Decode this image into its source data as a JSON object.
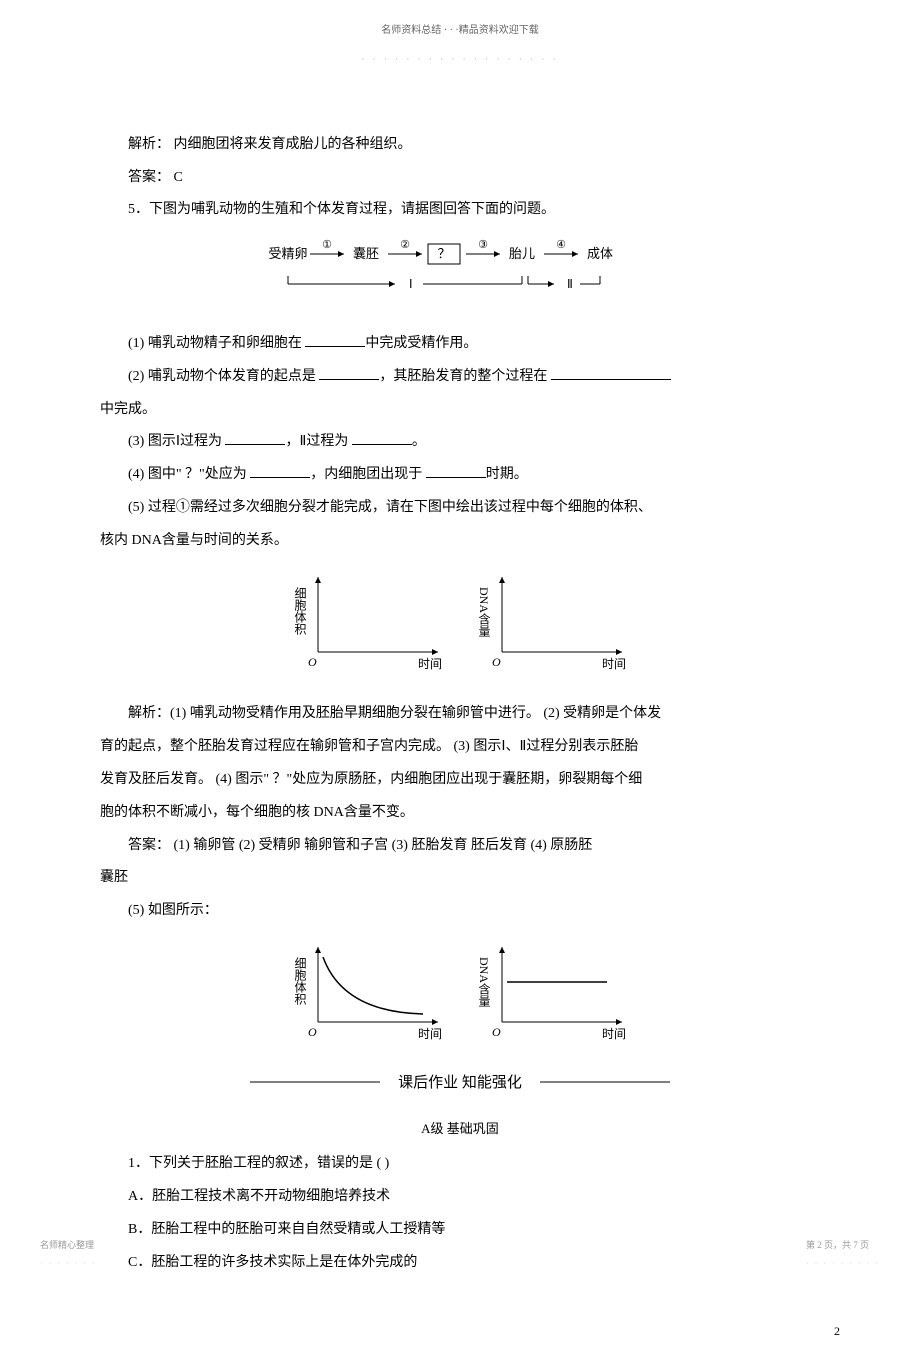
{
  "header": {
    "top": "名师资料总结 · · ·精品资料欢迎下载",
    "sub": "· · · · · · · · · · · · · · · · · ·"
  },
  "content": {
    "p1": "解析： 内细胞团将来发育成胎儿的各种组织。",
    "p2": "答案： C",
    "p3": "5．下图为哺乳动物的生殖和个体发育过程，请据图回答下面的问题。",
    "q1_pre": "(1) 哺乳动物精子和卵细胞在   ",
    "q1_post": "中完成受精作用。",
    "q2_pre": "(2) 哺乳动物个体发育的起点是    ",
    "q2_mid": "，其胚胎发育的整个过程在   ",
    "q2_end": "中完成。",
    "q3_pre": "(3) 图示Ⅰ过程为 ",
    "q3_mid": "，Ⅱ过程为 ",
    "q3_post": "。",
    "q4_pre": "(4) 图中\" ？\"处应为   ",
    "q4_mid": "，内细胞团出现于  ",
    "q4_post": "时期。",
    "q5": "(5) 过程①需经过多次细胞分裂才能完成，请在下图中绘出该过程中每个细胞的体积、",
    "q5_cont": "核内 DNA含量与时间的关系。",
    "analysis_pre": "解析：(1) 哺乳动物受精作用及胚胎早期细胞分裂在输卵管中进行。       (2) 受精卵是个体发",
    "analysis_l2": "育的起点，整个胚胎发育过程应在输卵管和子宫内完成。       (3) 图示Ⅰ、Ⅱ过程分别表示胚胎",
    "analysis_l3": "发育及胚后发育。   (4) 图示\" ？\"处应为原肠胚，内细胞团应出现于囊胚期，卵裂期每个细",
    "analysis_l4": "胞的体积不断减小，每个细胞的核     DNA含量不变。",
    "answer": "答案： (1) 输卵管    (2) 受精卵    输卵管和子宫    (3) 胚胎发育    胚后发育    (4) 原肠胚",
    "answer_cont": "囊胚",
    "q5_ans": "(5) 如图所示：",
    "divider": "课后作业 知能强化",
    "a_level": "A级    基础巩固",
    "ex1": "1．下列关于胚胎工程的叙述，错误的是     (       )",
    "ex1a": "A．胚胎工程技术离不开动物细胞培养技术",
    "ex1b": "B．胚胎工程中的胚胎可来自自然受精或人工授精等",
    "ex1c": "C．胚胎工程的许多技术实际上是在体外完成的"
  },
  "flow_diagram": {
    "nodes": [
      "受精卵",
      "囊胚",
      "？",
      "胎儿",
      "成体"
    ],
    "edge_labels": [
      "①",
      "②",
      "③",
      "④"
    ],
    "bottom_labels": [
      "Ⅰ",
      "Ⅱ"
    ],
    "box_node_index": 2,
    "font_size": 13,
    "stroke": "#000",
    "text_color": "#000"
  },
  "blank_charts": {
    "chart1": {
      "y_label": "细胞体积",
      "x_label": "时间",
      "origin": "O",
      "axis_color": "#000",
      "font_size": 12
    },
    "chart2": {
      "y_label": "DNA含量",
      "x_label": "时间",
      "origin": "O",
      "axis_color": "#000",
      "font_size": 12
    }
  },
  "answer_charts": {
    "chart1": {
      "y_label": "细胞体积",
      "x_label": "时间",
      "origin": "O",
      "curve_type": "decay",
      "curve_start": [
        10,
        10
      ],
      "curve_end": [
        110,
        75
      ],
      "axis_color": "#000",
      "curve_color": "#000"
    },
    "chart2": {
      "y_label": "DNA含量",
      "x_label": "时间",
      "origin": "O",
      "curve_type": "flat",
      "y_value": 40,
      "axis_color": "#000",
      "curve_color": "#000"
    }
  },
  "page_number": "2",
  "footer": {
    "left": "名师精心整理",
    "left_dots": "· · · · · · ·",
    "right": "第 2 页，共 7 页",
    "right_dots": "· · · · · · · · ·"
  }
}
